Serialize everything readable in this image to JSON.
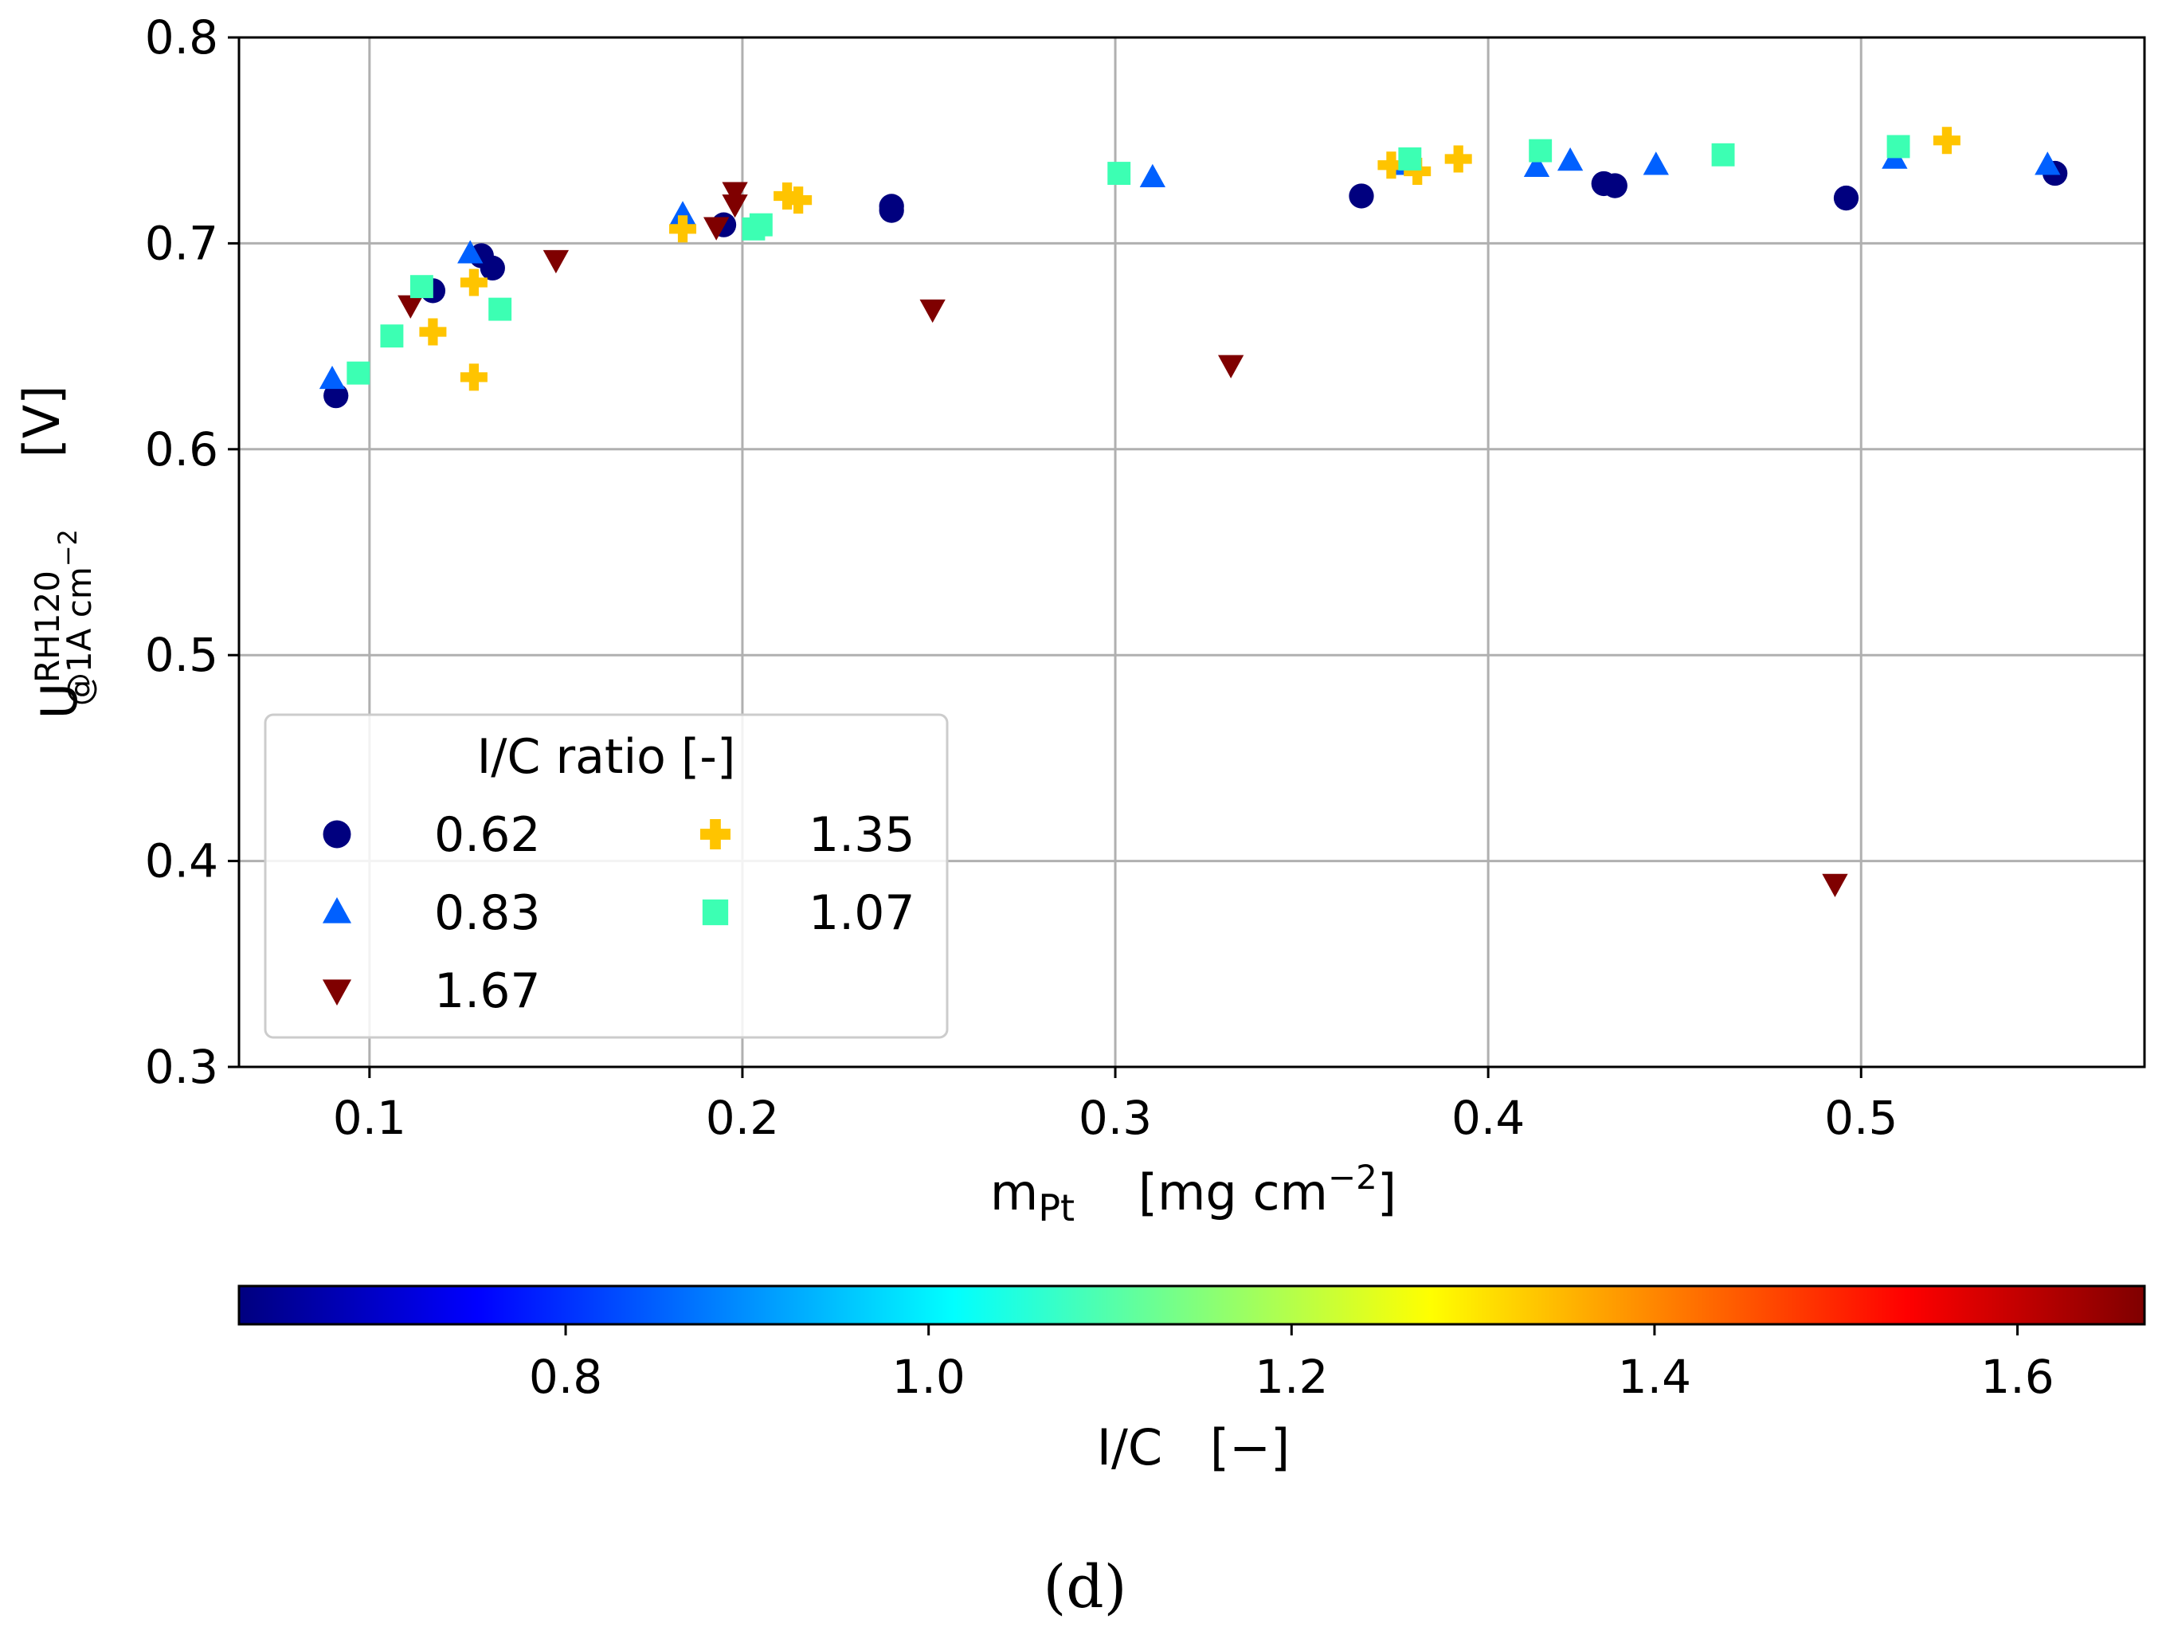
{
  "chart_data": {
    "type": "scatter",
    "xlabel": {
      "main": "m",
      "sub": "Pt",
      "units": "[mg cm",
      "exp": "−2",
      "close": "]"
    },
    "ylabel": {
      "main": "U",
      "sup": "RH120",
      "sub": "@1A cm",
      "subexp": "−2",
      "units": "[V]"
    },
    "xlim": [
      0.065,
      0.576
    ],
    "ylim": [
      0.3,
      0.8
    ],
    "xticks": [
      0.1,
      0.2,
      0.3,
      0.4,
      0.5
    ],
    "xtick_labels": [
      "0.1",
      "0.2",
      "0.3",
      "0.4",
      "0.5"
    ],
    "yticks": [
      0.3,
      0.4,
      0.5,
      0.6,
      0.7,
      0.8
    ],
    "ytick_labels": [
      "0.3",
      "0.4",
      "0.5",
      "0.6",
      "0.7",
      "0.8"
    ],
    "grid": true,
    "legend": {
      "title": "I/C ratio [-]",
      "location": "lower-left",
      "entries": [
        {
          "label": "0.62",
          "marker": "circle",
          "color": "#00007f"
        },
        {
          "label": "1.35",
          "marker": "plus",
          "color": "#ffc400"
        },
        {
          "label": "0.83",
          "marker": "triangle-up",
          "color": "#0060ff"
        },
        {
          "label": "1.07",
          "marker": "square",
          "color": "#3cffb3"
        },
        {
          "label": "1.67",
          "marker": "triangle-down",
          "color": "#7f0000"
        }
      ]
    },
    "series": [
      {
        "name": "0.62",
        "marker": "circle",
        "color": "#00007f",
        "points": [
          [
            0.091,
            0.626
          ],
          [
            0.117,
            0.677
          ],
          [
            0.13,
            0.694
          ],
          [
            0.133,
            0.688
          ],
          [
            0.195,
            0.709
          ],
          [
            0.24,
            0.716
          ],
          [
            0.24,
            0.718
          ],
          [
            0.366,
            0.723
          ],
          [
            0.431,
            0.729
          ],
          [
            0.434,
            0.728
          ],
          [
            0.496,
            0.722
          ],
          [
            0.552,
            0.734
          ]
        ]
      },
      {
        "name": "0.83",
        "marker": "triangle-up",
        "color": "#0060ff",
        "points": [
          [
            0.09,
            0.634
          ],
          [
            0.127,
            0.695
          ],
          [
            0.184,
            0.714
          ],
          [
            0.31,
            0.732
          ],
          [
            0.378,
            0.738
          ],
          [
            0.413,
            0.737
          ],
          [
            0.422,
            0.74
          ],
          [
            0.445,
            0.738
          ],
          [
            0.509,
            0.741
          ],
          [
            0.55,
            0.738
          ]
        ]
      },
      {
        "name": "1.67",
        "marker": "triangle-down",
        "color": "#7f0000",
        "points": [
          [
            0.111,
            0.67
          ],
          [
            0.15,
            0.692
          ],
          [
            0.193,
            0.708
          ],
          [
            0.198,
            0.719
          ],
          [
            0.198,
            0.725
          ],
          [
            0.251,
            0.668
          ],
          [
            0.331,
            0.641
          ],
          [
            0.493,
            0.389
          ]
        ]
      },
      {
        "name": "1.35",
        "marker": "plus",
        "color": "#ffc400",
        "points": [
          [
            0.117,
            0.657
          ],
          [
            0.128,
            0.681
          ],
          [
            0.128,
            0.635
          ],
          [
            0.184,
            0.707
          ],
          [
            0.212,
            0.723
          ],
          [
            0.215,
            0.721
          ],
          [
            0.374,
            0.738
          ],
          [
            0.381,
            0.735
          ],
          [
            0.392,
            0.741
          ],
          [
            0.523,
            0.75
          ]
        ]
      },
      {
        "name": "1.07",
        "marker": "square",
        "color": "#3cffb3",
        "points": [
          [
            0.097,
            0.637
          ],
          [
            0.106,
            0.655
          ],
          [
            0.114,
            0.679
          ],
          [
            0.135,
            0.668
          ],
          [
            0.203,
            0.707
          ],
          [
            0.205,
            0.709
          ],
          [
            0.301,
            0.734
          ],
          [
            0.379,
            0.741
          ],
          [
            0.414,
            0.745
          ],
          [
            0.463,
            0.743
          ],
          [
            0.51,
            0.747
          ]
        ]
      }
    ],
    "colorbar": {
      "label": {
        "main": "I/C",
        "units": "[−]"
      },
      "range": [
        0.62,
        1.67
      ],
      "ticks": [
        0.8,
        1.0,
        1.2,
        1.4,
        1.6
      ],
      "tick_labels": [
        "0.8",
        "1.0",
        "1.2",
        "1.4",
        "1.6"
      ],
      "colormap": "jet",
      "stops": [
        "#00007f",
        "#0000ff",
        "#007fff",
        "#00ffff",
        "#7fff7f",
        "#ffff00",
        "#ff7f00",
        "#ff0000",
        "#7f0000"
      ]
    }
  },
  "caption": "(d)"
}
